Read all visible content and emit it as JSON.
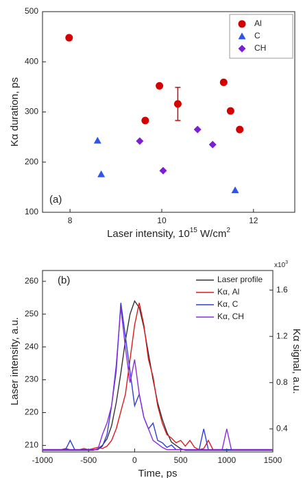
{
  "chart_data": [
    {
      "type": "scatter",
      "xlabel": [
        "Laser intensity, 10",
        "15",
        " W/cm",
        "2"
      ],
      "ylabel": "Kα duration, ps",
      "annotation": "(a)",
      "xlim": [
        7.4,
        12.9
      ],
      "xticks": [
        8,
        10,
        12
      ],
      "ylim": [
        100,
        500
      ],
      "yticks": [
        100,
        200,
        300,
        400,
        500
      ],
      "legend": "upper right",
      "series": [
        {
          "name": "Al",
          "color": "#d40000",
          "marker": "circle",
          "x": [
            7.98,
            9.64,
            9.95,
            10.35,
            11.35,
            11.5,
            11.7
          ],
          "values": [
            448,
            283,
            352,
            316,
            359,
            302,
            265
          ],
          "errors": [
            null,
            null,
            null,
            33,
            null,
            null,
            null
          ]
        },
        {
          "name": "C",
          "color": "#2f54eb",
          "marker": "triangle",
          "x": [
            8.6,
            8.68,
            11.6
          ],
          "values": [
            243,
            176,
            144
          ]
        },
        {
          "name": "CH",
          "color": "#7b1fd6",
          "marker": "diamond",
          "x": [
            9.52,
            10.03,
            10.78,
            11.11
          ],
          "values": [
            242,
            183,
            265,
            235
          ]
        }
      ]
    },
    {
      "type": "line",
      "xlabel": "Time, ps",
      "ylabel": "Laser intensity, a.u.",
      "y2label": "Kα signal, a.u.",
      "y2multiplier": [
        "x10",
        "3"
      ],
      "annotation": "(b)",
      "xlim": [
        -1000,
        1500
      ],
      "xticks": [
        -1000,
        -500,
        0,
        500,
        1000,
        1500
      ],
      "ylim": [
        208,
        263.3
      ],
      "yticks": [
        210,
        220,
        230,
        240,
        250,
        260
      ],
      "y2lim": [
        0.2,
        1.77
      ],
      "y2ticks": [
        0.4,
        0.8,
        1.2,
        1.6
      ],
      "legend": "upper right",
      "x": [
        -1000,
        -950,
        -900,
        -850,
        -800,
        -750,
        -700,
        -650,
        -600,
        -550,
        -500,
        -450,
        -400,
        -350,
        -300,
        -250,
        -200,
        -150,
        -100,
        -50,
        0,
        50,
        100,
        150,
        200,
        250,
        300,
        350,
        400,
        450,
        500,
        550,
        600,
        650,
        700,
        750,
        800,
        850,
        900,
        950,
        1000,
        1050,
        1100,
        1150,
        1200,
        1250,
        1300,
        1350,
        1400,
        1450,
        1500
      ],
      "series": [
        {
          "name": "Laser profile",
          "color": "#333333",
          "values": [
            208.5,
            208.5,
            208.5,
            208.5,
            208.5,
            208.5,
            208.5,
            208.5,
            208.5,
            208.5,
            208.5,
            208.5,
            209,
            210,
            212,
            216,
            223,
            232,
            242,
            250,
            254,
            252,
            246,
            238,
            230,
            223,
            218,
            214,
            211,
            210,
            209,
            208.5,
            208.5,
            208.5,
            208.5,
            208.5,
            208.5,
            208.5,
            208.5,
            208.5,
            208.5,
            208.5,
            208.5,
            208.5,
            208.5,
            208.5,
            208.5,
            208.5,
            208.5,
            208.5,
            208.5
          ]
        },
        {
          "name": "Kα, Al",
          "color": "#e0191b",
          "axis": "y2",
          "values": [
            0.22,
            0.22,
            0.22,
            0.22,
            0.22,
            0.23,
            0.22,
            0.22,
            0.22,
            0.23,
            0.22,
            0.23,
            0.24,
            0.23,
            0.25,
            0.3,
            0.4,
            0.55,
            0.7,
            1.0,
            1.3,
            1.49,
            1.3,
            1.0,
            0.85,
            0.6,
            0.45,
            0.35,
            0.32,
            0.28,
            0.3,
            0.25,
            0.3,
            0.24,
            0.22,
            0.23,
            0.3,
            0.22,
            0.22,
            0.22,
            0.22,
            0.22,
            0.22,
            0.22,
            0.22,
            0.22,
            0.22,
            0.22,
            0.22,
            0.22,
            0.22
          ]
        },
        {
          "name": "Kα, C",
          "color": "#2d3fd6",
          "axis": "y2",
          "values": [
            0.22,
            0.22,
            0.22,
            0.22,
            0.22,
            0.22,
            0.3,
            0.22,
            0.22,
            0.22,
            0.22,
            0.22,
            0.22,
            0.25,
            0.35,
            0.6,
            0.9,
            1.49,
            1.2,
            0.9,
            0.6,
            0.7,
            0.5,
            0.4,
            0.45,
            0.3,
            0.28,
            0.24,
            0.26,
            0.22,
            0.22,
            0.22,
            0.22,
            0.22,
            0.22,
            0.4,
            0.22,
            0.22,
            0.22,
            0.22,
            0.22,
            0.22,
            0.22,
            0.22,
            0.22,
            0.22,
            0.22,
            0.22,
            0.22,
            0.22,
            0.22
          ]
        },
        {
          "name": "Kα, CH",
          "color": "#8a2be2",
          "axis": "y2",
          "values": [
            0.22,
            0.22,
            0.22,
            0.22,
            0.22,
            0.22,
            0.22,
            0.22,
            0.22,
            0.22,
            0.22,
            0.22,
            0.22,
            0.35,
            0.45,
            0.6,
            0.95,
            1.45,
            1.1,
            0.8,
            1.0,
            0.7,
            0.5,
            0.4,
            0.3,
            0.27,
            0.24,
            0.22,
            0.22,
            0.22,
            0.22,
            0.22,
            0.22,
            0.22,
            0.22,
            0.22,
            0.22,
            0.22,
            0.22,
            0.22,
            0.4,
            0.22,
            0.22,
            0.22,
            0.22,
            0.22,
            0.22,
            0.22,
            0.22,
            0.22,
            0.22
          ]
        }
      ]
    }
  ]
}
